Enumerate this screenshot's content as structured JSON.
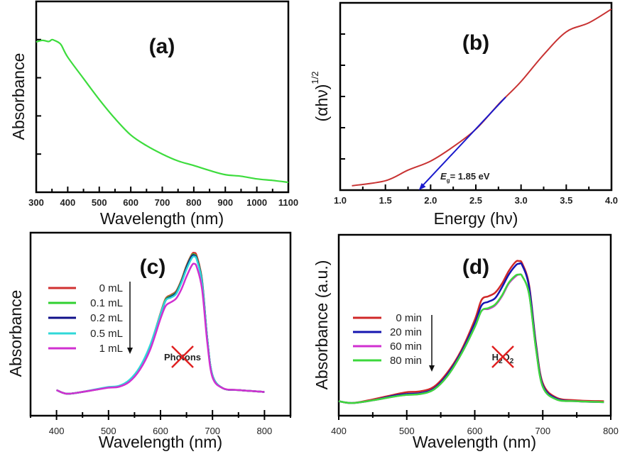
{
  "chart_data": [
    {
      "panel_label": "(a)",
      "type": "line",
      "xlabel": "Wavelength (nm)",
      "ylabel": "Absorbance",
      "xlim": [
        300,
        1100
      ],
      "ylim": [
        0,
        5
      ],
      "xticks": [
        300,
        400,
        500,
        600,
        700,
        800,
        900,
        1000,
        1100
      ],
      "x_tick_labels_shown": true,
      "y_tick_labels_shown": false,
      "grid": false,
      "series": [
        {
          "color": "#3ddc3d",
          "x": [
            300,
            320,
            340,
            350,
            360,
            370,
            380,
            400,
            450,
            500,
            550,
            600,
            650,
            700,
            750,
            800,
            850,
            900,
            950,
            1000,
            1050,
            1100
          ],
          "y": [
            3.94,
            3.98,
            3.95,
            4.0,
            3.97,
            3.93,
            3.85,
            3.54,
            2.98,
            2.43,
            1.93,
            1.5,
            1.22,
            1.0,
            0.82,
            0.7,
            0.57,
            0.46,
            0.42,
            0.35,
            0.31,
            0.26
          ]
        }
      ]
    },
    {
      "panel_label": "(b)",
      "type": "line",
      "xlabel": "Energy (hν)",
      "ylabel": "(αhν)",
      "ylabel_superscript": "1/2",
      "xlim": [
        1.0,
        4.0
      ],
      "ylim": [
        0,
        6
      ],
      "xticks": [
        1.0,
        1.5,
        2.0,
        2.5,
        3.0,
        3.5,
        4.0
      ],
      "x_tick_labels_shown": true,
      "y_tick_labels_shown": false,
      "grid": false,
      "series": [
        {
          "color": "#c83232",
          "x": [
            1.13,
            1.5,
            1.75,
            2.0,
            2.25,
            2.5,
            2.75,
            2.83,
            3.0,
            3.25,
            3.5,
            3.75,
            4.0
          ],
          "y": [
            0.14,
            0.3,
            0.64,
            0.93,
            1.39,
            1.95,
            2.75,
            2.98,
            3.48,
            4.34,
            5.07,
            5.36,
            5.8
          ]
        }
      ],
      "fit_line": {
        "color": "#1a1acc",
        "x": [
          2.83,
          1.87
        ],
        "y": [
          2.98,
          0
        ]
      },
      "annotation": {
        "symbol": "E",
        "subscript": "g",
        "text": "= 1.85 eV"
      }
    },
    {
      "panel_label": "(c)",
      "type": "line",
      "xlabel": "Wavelength (nm)",
      "ylabel": "Absorbance",
      "xlim": [
        350,
        850
      ],
      "ylim": [
        0,
        1
      ],
      "xticks": [
        400,
        500,
        600,
        700,
        800
      ],
      "x_tick_labels_shown": true,
      "y_tick_labels_shown": false,
      "grid": false,
      "legend": "top-left",
      "annotation": {
        "text": "Photons",
        "crossed_out": true,
        "cross_color": "#e02020"
      },
      "x": [
        400,
        420,
        450,
        480,
        500,
        520,
        540,
        560,
        580,
        600,
        610,
        620,
        630,
        640,
        650,
        660,
        665,
        670,
        680,
        690,
        700,
        720,
        750,
        800
      ],
      "series": [
        {
          "name": "0 mL",
          "color": "#d03030",
          "values": [
            0.14,
            0.12,
            0.13,
            0.145,
            0.155,
            0.16,
            0.19,
            0.26,
            0.38,
            0.56,
            0.64,
            0.66,
            0.68,
            0.74,
            0.82,
            0.88,
            0.89,
            0.87,
            0.74,
            0.42,
            0.22,
            0.15,
            0.14,
            0.13
          ]
        },
        {
          "name": "0.1 mL",
          "color": "#30d030",
          "values": [
            0.14,
            0.12,
            0.13,
            0.145,
            0.155,
            0.16,
            0.19,
            0.26,
            0.38,
            0.555,
            0.635,
            0.655,
            0.675,
            0.735,
            0.815,
            0.875,
            0.88,
            0.86,
            0.735,
            0.42,
            0.22,
            0.15,
            0.14,
            0.13
          ]
        },
        {
          "name": "0.2 mL",
          "color": "#10108a",
          "values": [
            0.14,
            0.12,
            0.13,
            0.145,
            0.155,
            0.16,
            0.19,
            0.26,
            0.38,
            0.55,
            0.63,
            0.65,
            0.67,
            0.73,
            0.81,
            0.87,
            0.875,
            0.855,
            0.73,
            0.42,
            0.22,
            0.15,
            0.14,
            0.13
          ]
        },
        {
          "name": "0.5 mL",
          "color": "#30d8d8",
          "values": [
            0.14,
            0.12,
            0.13,
            0.147,
            0.157,
            0.163,
            0.195,
            0.265,
            0.385,
            0.555,
            0.63,
            0.645,
            0.665,
            0.725,
            0.8,
            0.86,
            0.87,
            0.85,
            0.725,
            0.42,
            0.22,
            0.15,
            0.14,
            0.13
          ]
        },
        {
          "name": "1 mL",
          "color": "#d030d0",
          "values": [
            0.14,
            0.12,
            0.13,
            0.144,
            0.153,
            0.158,
            0.185,
            0.25,
            0.36,
            0.53,
            0.6,
            0.62,
            0.64,
            0.69,
            0.76,
            0.82,
            0.83,
            0.81,
            0.69,
            0.4,
            0.21,
            0.15,
            0.14,
            0.13
          ]
        }
      ]
    },
    {
      "panel_label": "(d)",
      "type": "line",
      "xlabel": "Wavelength (nm)",
      "ylabel": "Absorbance (a.u.)",
      "xlim": [
        400,
        800
      ],
      "ylim": [
        0,
        1
      ],
      "xticks": [
        400,
        500,
        600,
        700,
        800
      ],
      "x_tick_labels_shown": true,
      "y_tick_labels_shown": false,
      "grid": false,
      "legend": "left",
      "annotation": {
        "text": "H",
        "sub1": "2",
        "text2": "O",
        "sub2": "2",
        "crossed_out": true,
        "cross_color": "#e02020"
      },
      "x": [
        400,
        420,
        450,
        480,
        500,
        520,
        540,
        560,
        580,
        600,
        610,
        620,
        630,
        640,
        650,
        660,
        665,
        670,
        680,
        690,
        700,
        720,
        750,
        790
      ],
      "series": [
        {
          "name": "0 min",
          "color": "#d02828",
          "values": [
            0.08,
            0.07,
            0.09,
            0.115,
            0.13,
            0.135,
            0.16,
            0.24,
            0.36,
            0.53,
            0.64,
            0.66,
            0.68,
            0.73,
            0.8,
            0.85,
            0.855,
            0.84,
            0.72,
            0.4,
            0.18,
            0.1,
            0.085,
            0.08
          ]
        },
        {
          "name": "20 min",
          "color": "#1515b0",
          "values": [
            0.08,
            0.07,
            0.085,
            0.11,
            0.12,
            0.125,
            0.15,
            0.23,
            0.35,
            0.51,
            0.61,
            0.63,
            0.65,
            0.71,
            0.78,
            0.83,
            0.84,
            0.83,
            0.71,
            0.39,
            0.17,
            0.095,
            0.08,
            0.075
          ]
        },
        {
          "name": "60 min",
          "color": "#d030d0",
          "values": [
            0.08,
            0.07,
            0.085,
            0.105,
            0.115,
            0.12,
            0.145,
            0.22,
            0.34,
            0.49,
            0.58,
            0.59,
            0.61,
            0.66,
            0.73,
            0.77,
            0.78,
            0.77,
            0.67,
            0.37,
            0.16,
            0.09,
            0.08,
            0.075
          ]
        },
        {
          "name": "80 min",
          "color": "#3cd83c",
          "values": [
            0.08,
            0.07,
            0.085,
            0.105,
            0.115,
            0.12,
            0.145,
            0.22,
            0.34,
            0.49,
            0.58,
            0.595,
            0.615,
            0.665,
            0.735,
            0.775,
            0.78,
            0.77,
            0.67,
            0.37,
            0.16,
            0.09,
            0.08,
            0.075
          ]
        }
      ]
    }
  ]
}
